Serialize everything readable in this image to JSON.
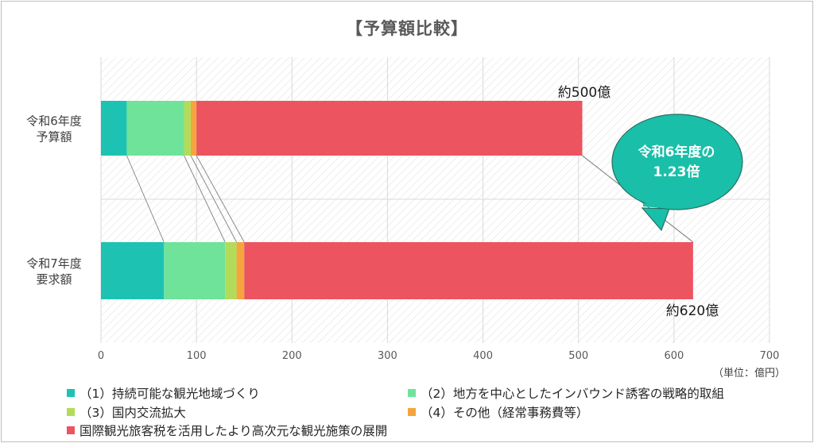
{
  "title": "【予算額比較】",
  "unit_label": "（単位：億円）",
  "callout": {
    "line1": "令和6年度の",
    "line2": "1.23倍",
    "color": "#19BFA8"
  },
  "colors": {
    "s1": "#1EC2B2",
    "s2": "#6FE39A",
    "s3": "#B3DB5A",
    "s4": "#F4A53C",
    "s5": "#EC5460",
    "grid": "#d9d9d9",
    "connector": "#808080"
  },
  "chart_data": {
    "type": "bar",
    "orientation": "horizontal",
    "stacked": true,
    "categories": [
      {
        "line1": "令和6年度",
        "line2": "予算額"
      },
      {
        "line1": "令和7年度",
        "line2": "要求額"
      }
    ],
    "series": [
      {
        "name": "(1)持続可能な観光地域づくり",
        "values": [
          27,
          66
        ]
      },
      {
        "name": "(2)地方を中心としたインバウンド誘客の戦略的取組",
        "values": [
          60,
          64
        ]
      },
      {
        "name": "(3)国内交流拡大",
        "values": [
          7,
          12
        ]
      },
      {
        "name": "(4)その他（経常事務費等）",
        "values": [
          6,
          8
        ]
      },
      {
        "name": "国際観光旅客税を活用したより高次元な観光施策の展開",
        "values": [
          404,
          470
        ]
      }
    ],
    "totals_labels": [
      "約500億",
      "約620億"
    ],
    "xlim": [
      0,
      700
    ],
    "xticks": [
      0,
      100,
      200,
      300,
      400,
      500,
      600,
      700
    ],
    "grid": true
  },
  "legend": [
    {
      "label": "（1）持続可能な観光地域づくり",
      "color_key": "s1"
    },
    {
      "label": "（2）地方を中心としたインバウンド誘客の戦略的取組",
      "color_key": "s2"
    },
    {
      "label": "（3）国内交流拡大",
      "color_key": "s3"
    },
    {
      "label": "（4）その他（経常事務費等）",
      "color_key": "s4"
    },
    {
      "label": "国際観光旅客税を活用したより高次元な観光施策の展開",
      "color_key": "s5"
    }
  ]
}
